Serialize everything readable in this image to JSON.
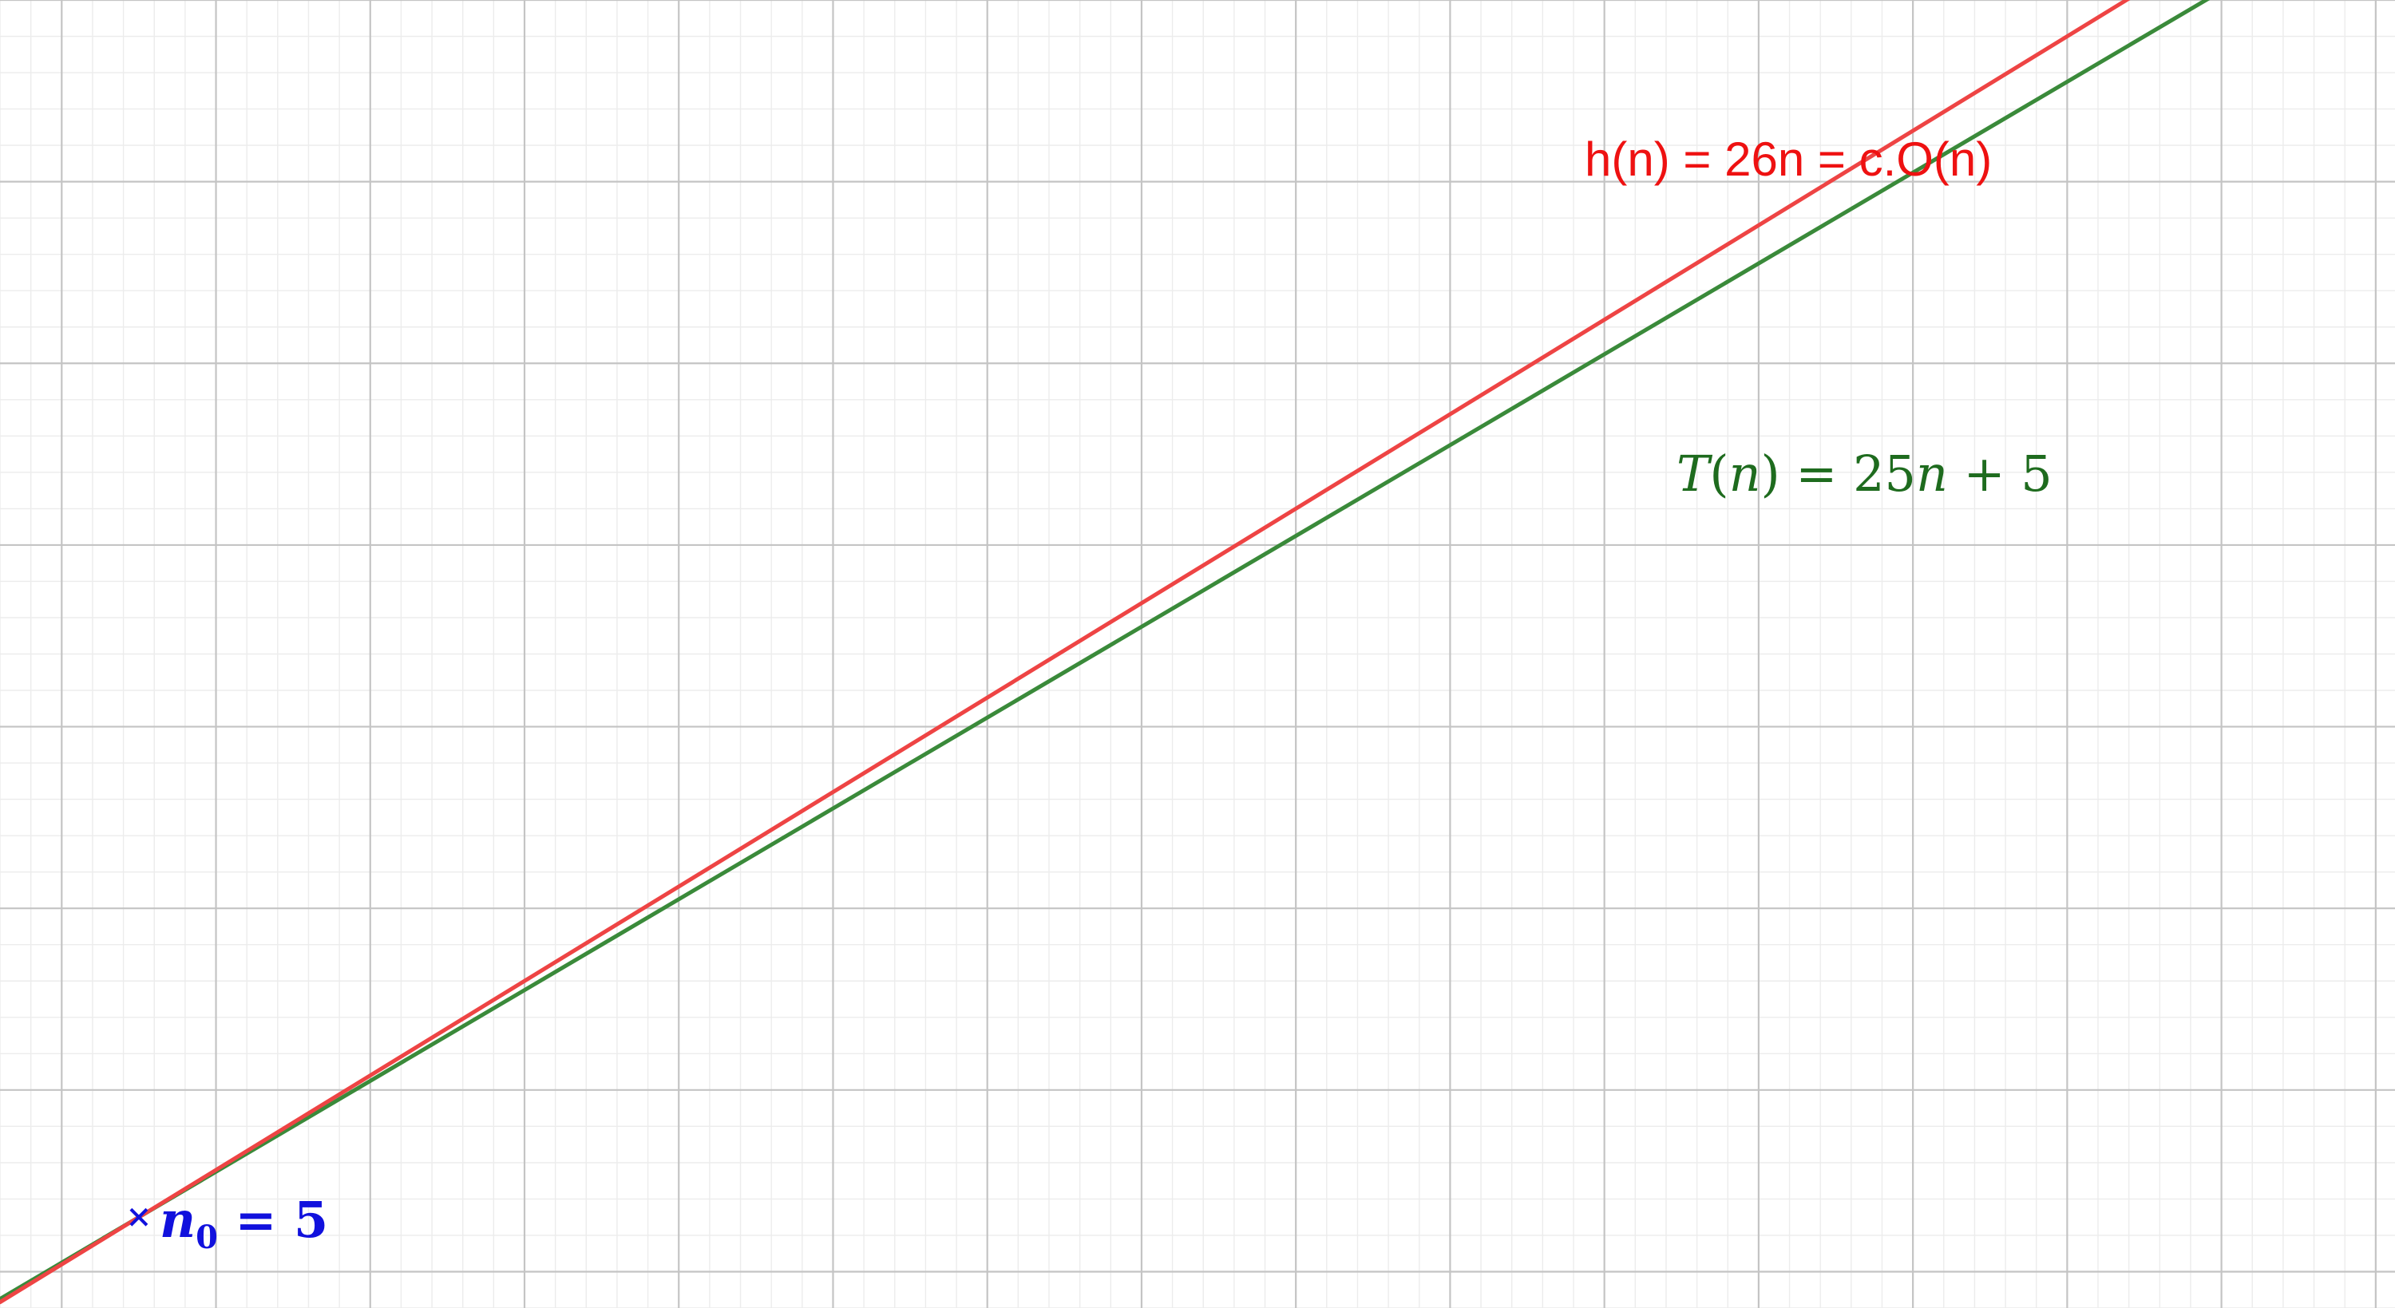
{
  "chart_data": {
    "type": "line",
    "title": "",
    "xlabel": "",
    "ylabel": "",
    "grid": true,
    "axes_visible": false,
    "xlim": [
      3.2,
      34.25
    ],
    "ylim": [
      80,
      800
    ],
    "x_major_step": 2,
    "x_minor_step": 0.4,
    "y_major_step": 100,
    "y_minor_step": 20,
    "series": [
      {
        "name": "h(n)",
        "expression": "26n",
        "slope": 26,
        "intercept": 0,
        "color": "#ee4444"
      },
      {
        "name": "T(n)",
        "expression": "25n + 5",
        "slope": 25,
        "intercept": 5,
        "color": "#3a8a3a"
      }
    ],
    "points": [
      {
        "name": "n0",
        "x": 5,
        "y": 130,
        "color": "#1111dd",
        "marker": "x"
      }
    ],
    "annotations": {
      "h_label": "h(n) = 26n = c.O(n)",
      "t_label": {
        "T": "T",
        "open": "(",
        "n": "n",
        "close": ")",
        "eq": " = 25",
        "n2": "n",
        "rest": " + 5"
      },
      "n0_label": {
        "n": "n",
        "sub": "0",
        "rest": " = 5"
      }
    }
  }
}
